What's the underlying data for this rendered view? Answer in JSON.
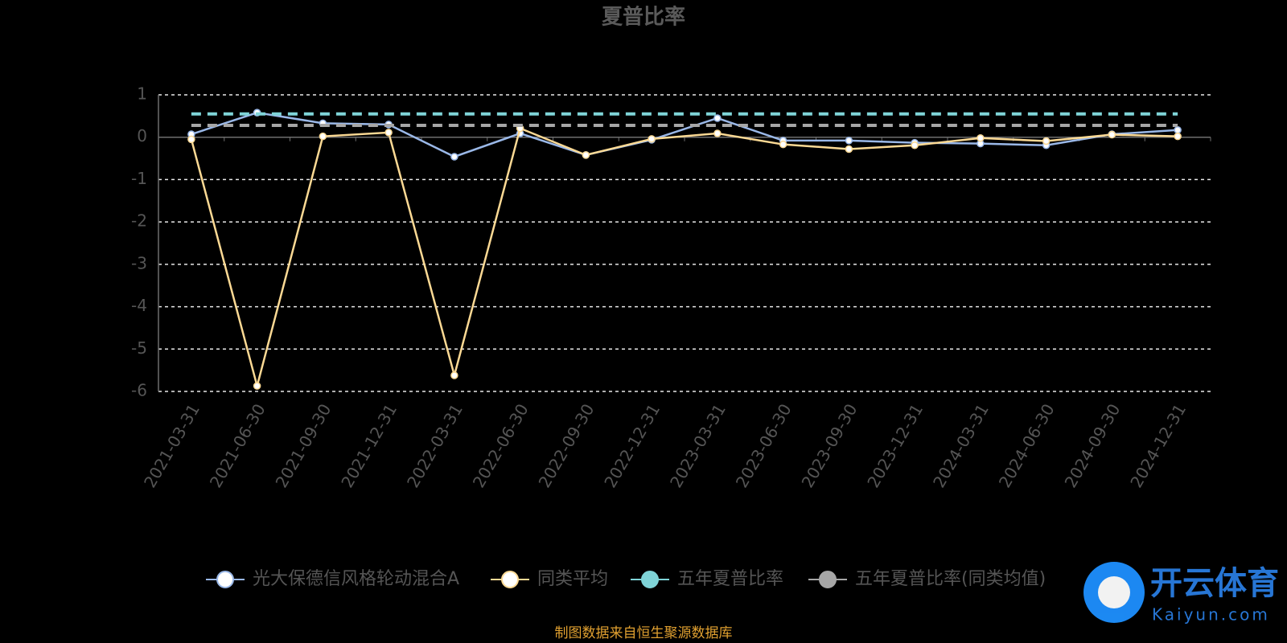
{
  "chart_data": {
    "type": "line",
    "title": "夏普比率",
    "categories": [
      "2021-03-31",
      "2021-06-30",
      "2021-09-30",
      "2021-12-31",
      "2022-03-31",
      "2022-06-30",
      "2022-09-30",
      "2022-12-31",
      "2023-03-31",
      "2023-06-30",
      "2023-09-30",
      "2023-12-31",
      "2024-03-31",
      "2024-06-30",
      "2024-09-30",
      "2024-12-31"
    ],
    "series": [
      {
        "name": "光大保德信风格轮动混合A",
        "color": "#9ab8e8",
        "values": [
          0.07,
          0.58,
          0.33,
          0.3,
          -0.46,
          0.09,
          -0.42,
          -0.06,
          0.45,
          -0.08,
          -0.08,
          -0.13,
          -0.15,
          -0.19,
          0.07,
          0.17
        ]
      },
      {
        "name": "同类平均",
        "color": "#fbd994",
        "values": [
          -0.05,
          -5.87,
          0.02,
          0.11,
          -5.62,
          0.21,
          -0.42,
          -0.04,
          0.09,
          -0.17,
          -0.28,
          -0.19,
          -0.02,
          -0.09,
          0.06,
          0.02
        ]
      },
      {
        "name": "五年夏普比率",
        "color": "#7fd4d8",
        "dashed": true,
        "values": [
          0.55,
          0.55,
          0.55,
          0.55,
          0.55,
          0.55,
          0.55,
          0.55,
          0.55,
          0.55,
          0.55,
          0.55,
          0.55,
          0.55,
          0.55,
          0.55
        ]
      },
      {
        "name": "五年夏普比率(同类均值)",
        "color": "#a6a6a6",
        "dashed": true,
        "values": [
          0.28,
          0.28,
          0.28,
          0.28,
          0.28,
          0.28,
          0.28,
          0.28,
          0.28,
          0.28,
          0.28,
          0.28,
          0.28,
          0.28,
          0.28,
          0.28
        ]
      }
    ],
    "ylim": [
      -6,
      1
    ],
    "yticks": [
      -6,
      -5,
      -4,
      -3,
      -2,
      -1,
      0,
      1
    ],
    "grid": true,
    "source": "制图数据来自恒生聚源数据库",
    "watermark": {
      "name": "开云体育",
      "url": "Kaiyun.com"
    }
  }
}
